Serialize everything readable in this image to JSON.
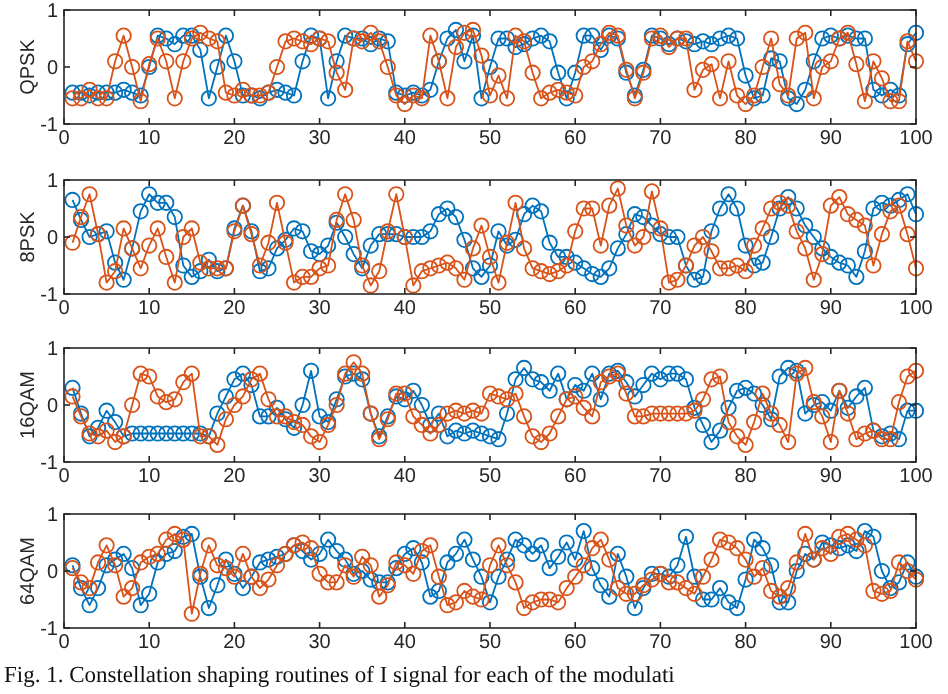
{
  "chart_data": [
    {
      "type": "line",
      "ylabel": "QPSK",
      "marker": "circle",
      "xlim": [
        0,
        100
      ],
      "xticks": [
        0,
        10,
        20,
        30,
        40,
        50,
        60,
        70,
        80,
        90,
        100
      ],
      "ylim": [
        -1,
        1
      ],
      "yticks": [
        -1,
        0,
        1
      ],
      "x": [
        1,
        2,
        3,
        4,
        5,
        6,
        7,
        8,
        9,
        10,
        11,
        12,
        13,
        14,
        15,
        16,
        17,
        18,
        19,
        20,
        21,
        22,
        23,
        24,
        25,
        26,
        27,
        28,
        29,
        30,
        31,
        32,
        33,
        34,
        35,
        36,
        37,
        38,
        39,
        40,
        41,
        42,
        43,
        44,
        45,
        46,
        47,
        48,
        49,
        50,
        51,
        52,
        53,
        54,
        55,
        56,
        57,
        58,
        59,
        60,
        61,
        62,
        63,
        64,
        65,
        66,
        67,
        68,
        69,
        70,
        71,
        72,
        73,
        74,
        75,
        76,
        77,
        78,
        79,
        80,
        81,
        82,
        83,
        84,
        85,
        86,
        87,
        88,
        89,
        90,
        91,
        92,
        93,
        94,
        95,
        96,
        97,
        98,
        99,
        100
      ],
      "series": [
        {
          "color": "#0072bd",
          "values": [
            -0.45,
            -0.45,
            -0.5,
            -0.45,
            -0.45,
            -0.45,
            -0.4,
            -0.45,
            -0.5,
            0,
            0.55,
            0.5,
            0.4,
            0.55,
            0.55,
            0.3,
            -0.55,
            0,
            0.55,
            0.1,
            -0.5,
            -0.5,
            -0.55,
            -0.45,
            -0.4,
            -0.45,
            -0.5,
            0.1,
            0.55,
            0.5,
            -0.55,
            0.1,
            0.55,
            0.5,
            0.5,
            0.4,
            0.5,
            0.45,
            -0.45,
            -0.5,
            -0.45,
            -0.5,
            -0.4,
            0.1,
            0.5,
            0.65,
            0.1,
            0.55,
            -0.55,
            0,
            0.5,
            0.5,
            0.35,
            0.4,
            0.5,
            0.55,
            0.45,
            -0.1,
            -0.55,
            -0.1,
            0.55,
            0.55,
            0.3,
            0.55,
            0.5,
            -0.1,
            -0.5,
            -0.05,
            0.55,
            0.5,
            0.4,
            0.5,
            0.45,
            0.4,
            0.45,
            0.4,
            0.5,
            0.55,
            0.5,
            -0.15,
            -0.55,
            -0.5,
            0.15,
            0.1,
            -0.55,
            -0.65,
            -0.4,
            0.1,
            0.5,
            0.55,
            0.5,
            0.55,
            0.5,
            0.5,
            -0.4,
            -0.5,
            -0.4,
            -0.5,
            0.4,
            0.6
          ]
        },
        {
          "color": "#d95319",
          "values": [
            -0.55,
            -0.55,
            -0.4,
            -0.55,
            -0.55,
            0.1,
            0.55,
            0,
            -0.6,
            0.05,
            0.5,
            0.1,
            -0.55,
            0.1,
            0.5,
            0.6,
            0.5,
            0.45,
            -0.45,
            -0.5,
            -0.4,
            -0.5,
            -0.5,
            -0.45,
            0,
            0.45,
            0.5,
            0.45,
            0.4,
            0.5,
            0.45,
            -0.1,
            -0.4,
            0.5,
            0.45,
            0.6,
            0.45,
            0,
            -0.5,
            -0.65,
            -0.5,
            -0.55,
            0.55,
            0.1,
            -0.55,
            0.35,
            0.6,
            0.65,
            0.2,
            -0.5,
            -0.15,
            -0.55,
            0.55,
            0.45,
            -0.1,
            -0.55,
            -0.45,
            -0.4,
            -0.45,
            -0.5,
            0,
            0.1,
            0.4,
            0.6,
            0.55,
            -0.05,
            -0.55,
            -0.1,
            0.5,
            0.55,
            0.35,
            0.5,
            0.5,
            -0.4,
            -0.05,
            0.05,
            -0.55,
            0.1,
            -0.5,
            -0.65,
            -0.5,
            0,
            0.5,
            -0.3,
            -0.5,
            0.5,
            0.6,
            -0.55,
            0,
            0.1,
            0.5,
            0.6,
            0.05,
            -0.6,
            0.1,
            -0.2,
            -0.6,
            -0.6,
            0.45,
            0.1
          ]
        }
      ]
    },
    {
      "type": "line",
      "ylabel": "8PSK",
      "marker": "circle",
      "xlim": [
        0,
        100
      ],
      "xticks": [
        0,
        10,
        20,
        30,
        40,
        50,
        60,
        70,
        80,
        90,
        100
      ],
      "ylim": [
        -1,
        1
      ],
      "yticks": [
        -1,
        0,
        1
      ],
      "x": [
        1,
        2,
        3,
        4,
        5,
        6,
        7,
        8,
        9,
        10,
        11,
        12,
        13,
        14,
        15,
        16,
        17,
        18,
        19,
        20,
        21,
        22,
        23,
        24,
        25,
        26,
        27,
        28,
        29,
        30,
        31,
        32,
        33,
        34,
        35,
        36,
        37,
        38,
        39,
        40,
        41,
        42,
        43,
        44,
        45,
        46,
        47,
        48,
        49,
        50,
        51,
        52,
        53,
        54,
        55,
        56,
        57,
        58,
        59,
        60,
        61,
        62,
        63,
        64,
        65,
        66,
        67,
        68,
        69,
        70,
        71,
        72,
        73,
        74,
        75,
        76,
        77,
        78,
        79,
        80,
        81,
        82,
        83,
        84,
        85,
        86,
        87,
        88,
        89,
        90,
        91,
        92,
        93,
        94,
        95,
        96,
        97,
        98,
        99,
        100
      ],
      "series": [
        {
          "color": "#0072bd",
          "values": [
            0.65,
            0.3,
            0,
            0.05,
            0.1,
            -0.45,
            -0.75,
            -0.2,
            0.45,
            0.75,
            0.6,
            0.6,
            0.35,
            -0.5,
            -0.7,
            -0.6,
            -0.4,
            -0.6,
            -0.55,
            0.15,
            0.55,
            0.1,
            -0.6,
            -0.55,
            -0.2,
            -0.05,
            0.15,
            0.1,
            -0.25,
            -0.3,
            -0.15,
            0.25,
            0,
            -0.3,
            -0.55,
            -0.15,
            0.05,
            0.05,
            0.05,
            0,
            0,
            0,
            0.1,
            0.4,
            0.5,
            0.35,
            -0.05,
            -0.55,
            -0.7,
            -0.5,
            0.1,
            -0.15,
            -0.05,
            0.4,
            0.55,
            0.45,
            -0.1,
            -0.35,
            -0.35,
            -0.45,
            -0.55,
            -0.65,
            -0.7,
            -0.55,
            -0.2,
            0.05,
            0.4,
            0.35,
            0.2,
            0.05,
            0,
            0,
            -0.5,
            -0.75,
            -0.7,
            0.1,
            0.5,
            0.75,
            0.5,
            -0.15,
            -0.5,
            -0.45,
            0,
            0.5,
            0.7,
            0.5,
            0.2,
            0,
            -0.2,
            -0.35,
            -0.45,
            -0.5,
            -0.7,
            -0.25,
            0.5,
            0.6,
            0.55,
            0.65,
            0.75,
            0.4
          ]
        },
        {
          "color": "#d95319",
          "values": [
            -0.1,
            0.35,
            0.75,
            0.05,
            -0.8,
            -0.6,
            0.15,
            -0.2,
            -0.55,
            -0.15,
            0.15,
            -0.35,
            -0.8,
            0,
            0.15,
            -0.45,
            -0.55,
            -0.55,
            -0.55,
            0.1,
            0.55,
            0.05,
            -0.5,
            -0.1,
            0.6,
            -0.1,
            -0.8,
            -0.7,
            -0.7,
            -0.55,
            -0.5,
            0.3,
            0.75,
            0.3,
            -0.5,
            -0.85,
            -0.6,
            0.1,
            0.75,
            0,
            -0.85,
            -0.6,
            -0.55,
            -0.5,
            -0.45,
            -0.55,
            -0.75,
            -0.2,
            0.2,
            -0.35,
            -0.8,
            -0.1,
            0.6,
            -0.2,
            -0.55,
            -0.6,
            -0.65,
            -0.6,
            -0.5,
            0.1,
            0.5,
            0.5,
            -0.15,
            0.55,
            0.85,
            0.2,
            -0.15,
            0,
            0.8,
            0.15,
            -0.8,
            -0.75,
            -0.5,
            -0.15,
            0,
            -0.25,
            -0.55,
            -0.55,
            -0.5,
            -0.6,
            -0.15,
            0.15,
            0.5,
            0.6,
            0.55,
            0.1,
            -0.2,
            -0.75,
            -0.3,
            0.55,
            0.7,
            0.4,
            0.3,
            0.2,
            -0.5,
            0.05,
            0.45,
            0.55,
            0.05,
            -0.55
          ]
        }
      ]
    },
    {
      "type": "line",
      "ylabel": "16QAM",
      "marker": "circle",
      "xlim": [
        0,
        100
      ],
      "xticks": [
        0,
        10,
        20,
        30,
        40,
        50,
        60,
        70,
        80,
        90,
        100
      ],
      "ylim": [
        -1,
        1
      ],
      "yticks": [
        -1,
        0,
        1
      ],
      "x": [
        1,
        2,
        3,
        4,
        5,
        6,
        7,
        8,
        9,
        10,
        11,
        12,
        13,
        14,
        15,
        16,
        17,
        18,
        19,
        20,
        21,
        22,
        23,
        24,
        25,
        26,
        27,
        28,
        29,
        30,
        31,
        32,
        33,
        34,
        35,
        36,
        37,
        38,
        39,
        40,
        41,
        42,
        43,
        44,
        45,
        46,
        47,
        48,
        49,
        50,
        51,
        52,
        53,
        54,
        55,
        56,
        57,
        58,
        59,
        60,
        61,
        62,
        63,
        64,
        65,
        66,
        67,
        68,
        69,
        70,
        71,
        72,
        73,
        74,
        75,
        76,
        77,
        78,
        79,
        80,
        81,
        82,
        83,
        84,
        85,
        86,
        87,
        88,
        89,
        90,
        91,
        92,
        93,
        94,
        95,
        96,
        97,
        98,
        99,
        100
      ],
      "series": [
        {
          "color": "#0072bd",
          "values": [
            0.3,
            -0.15,
            -0.55,
            -0.4,
            -0.1,
            -0.3,
            -0.55,
            -0.5,
            -0.5,
            -0.5,
            -0.5,
            -0.5,
            -0.5,
            -0.5,
            -0.5,
            -0.5,
            -0.55,
            -0.15,
            0.15,
            0.45,
            0.55,
            0.35,
            -0.2,
            -0.2,
            -0.05,
            -0.25,
            -0.4,
            0,
            0.6,
            -0.2,
            -0.3,
            0.1,
            0.5,
            0.55,
            0.45,
            -0.15,
            -0.55,
            -0.2,
            0.15,
            0.1,
            0.25,
            0,
            -0.35,
            -0.15,
            -0.55,
            -0.45,
            -0.5,
            -0.45,
            -0.5,
            -0.55,
            -0.6,
            -0.15,
            0.45,
            0.65,
            0.45,
            0.4,
            0.25,
            0.55,
            0.1,
            0.35,
            0.25,
            0.55,
            0.1,
            0.55,
            0.6,
            0.4,
            0.15,
            0.35,
            0.55,
            0.45,
            0.55,
            0.55,
            0.45,
            -0.05,
            -0.35,
            -0.65,
            -0.45,
            -0.05,
            0.25,
            0.3,
            0.2,
            0,
            -0.25,
            0.5,
            0.65,
            0.6,
            -0.15,
            0,
            0.05,
            -0.1,
            0.25,
            -0.05,
            0.15,
            0.3,
            -0.45,
            -0.55,
            -0.5,
            -0.6,
            -0.1,
            -0.1
          ]
        },
        {
          "color": "#d95319",
          "values": [
            0.15,
            -0.2,
            -0.5,
            -0.55,
            -0.45,
            -0.65,
            -0.55,
            0,
            0.55,
            0.5,
            0.15,
            0.05,
            0.1,
            0.4,
            0.55,
            -0.55,
            -0.55,
            -0.7,
            -0.25,
            0,
            0.15,
            0.45,
            0.55,
            0.1,
            -0.2,
            -0.2,
            -0.3,
            -0.35,
            -0.55,
            -0.65,
            -0.35,
            0,
            0.55,
            0.75,
            0.55,
            -0.15,
            -0.6,
            -0.25,
            0.2,
            0.2,
            -0.2,
            -0.35,
            -0.5,
            -0.35,
            -0.15,
            -0.1,
            -0.15,
            -0.1,
            -0.15,
            0.2,
            0.15,
            0.1,
            0.2,
            -0.2,
            -0.55,
            -0.65,
            -0.5,
            -0.2,
            0.1,
            0.15,
            -0.05,
            -0.2,
            0.4,
            0.5,
            0.55,
            0.2,
            -0.2,
            -0.2,
            -0.15,
            -0.15,
            -0.15,
            -0.15,
            -0.15,
            -0.1,
            0.1,
            0.45,
            0.5,
            -0.3,
            -0.55,
            -0.7,
            -0.3,
            0.2,
            -0.15,
            -0.35,
            -0.65,
            0.55,
            0.65,
            0.05,
            -0.2,
            -0.65,
            0.25,
            -0.15,
            -0.6,
            -0.5,
            -0.45,
            -0.6,
            -0.6,
            0.05,
            0.5,
            0.6
          ]
        }
      ]
    },
    {
      "type": "line",
      "ylabel": "64QAM",
      "marker": "circle",
      "xlim": [
        0,
        100
      ],
      "xticks": [
        0,
        10,
        20,
        30,
        40,
        50,
        60,
        70,
        80,
        90,
        100
      ],
      "ylim": [
        -1,
        1
      ],
      "yticks": [
        -1,
        0,
        1
      ],
      "annotations": [
        "Fig. 1. Constellation shaping routines of I signal for each of the modulati"
      ],
      "x": [
        1,
        2,
        3,
        4,
        5,
        6,
        7,
        8,
        9,
        10,
        11,
        12,
        13,
        14,
        15,
        16,
        17,
        18,
        19,
        20,
        21,
        22,
        23,
        24,
        25,
        26,
        27,
        28,
        29,
        30,
        31,
        32,
        33,
        34,
        35,
        36,
        37,
        38,
        39,
        40,
        41,
        42,
        43,
        44,
        45,
        46,
        47,
        48,
        49,
        50,
        51,
        52,
        53,
        54,
        55,
        56,
        57,
        58,
        59,
        60,
        61,
        62,
        63,
        64,
        65,
        66,
        67,
        68,
        69,
        70,
        71,
        72,
        73,
        74,
        75,
        76,
        77,
        78,
        79,
        80,
        81,
        82,
        83,
        84,
        85,
        86,
        87,
        88,
        89,
        90,
        91,
        92,
        93,
        94,
        95,
        96,
        97,
        98,
        99,
        100
      ],
      "series": [
        {
          "color": "#0072bd",
          "values": [
            0.1,
            -0.3,
            -0.6,
            -0.3,
            0.1,
            0.2,
            0.3,
            0.05,
            -0.6,
            -0.4,
            0.15,
            0.3,
            0.35,
            0.6,
            0.65,
            -0.1,
            -0.65,
            -0.25,
            0.2,
            -0.05,
            -0.3,
            -0.1,
            0.15,
            0.2,
            0.25,
            0.3,
            0.45,
            0.35,
            0.2,
            0.3,
            0.55,
            0.35,
            0.2,
            -0.05,
            0,
            -0.15,
            -0.2,
            -0.2,
            0.05,
            0.3,
            0.4,
            0.15,
            -0.45,
            -0.35,
            0.15,
            0.3,
            0.55,
            0.2,
            -0.1,
            -0.55,
            -0.1,
            0.2,
            0.55,
            0.45,
            0.3,
            0.45,
            0.05,
            0.25,
            0.5,
            0.2,
            0.7,
            0.05,
            -0.25,
            -0.45,
            0.3,
            -0.1,
            -0.65,
            -0.3,
            -0.05,
            -0.05,
            -0.1,
            0.1,
            0.6,
            -0.1,
            -0.5,
            -0.5,
            -0.3,
            -0.55,
            -0.65,
            -0.15,
            0.55,
            0.4,
            0.1,
            -0.55,
            -0.55,
            0,
            0.3,
            0.2,
            0.5,
            0.45,
            0.4,
            0.45,
            0.35,
            0.7,
            0.6,
            0,
            -0.3,
            -0.2,
            0.15,
            -0.1
          ]
        },
        {
          "color": "#d95319",
          "values": [
            0.05,
            -0.2,
            -0.3,
            0.15,
            0.45,
            0.1,
            -0.45,
            -0.3,
            0.15,
            0.25,
            0.3,
            0.55,
            0.65,
            0.55,
            -0.75,
            -0.05,
            0.45,
            0.1,
            0.05,
            -0.1,
            0.3,
            -0.1,
            -0.3,
            -0.15,
            0.1,
            0.3,
            0.45,
            0.5,
            0.4,
            -0.05,
            -0.2,
            -0.2,
            0.1,
            -0.1,
            0.25,
            0.1,
            -0.45,
            -0.25,
            0.15,
            0.1,
            -0.05,
            0.35,
            0.45,
            -0.1,
            -0.6,
            -0.55,
            -0.35,
            -0.45,
            -0.5,
            0.1,
            0.45,
            0.1,
            -0.2,
            -0.65,
            -0.55,
            -0.5,
            -0.5,
            -0.55,
            -0.3,
            -0.1,
            0.1,
            0.4,
            0.55,
            0.2,
            -0.3,
            -0.4,
            -0.4,
            -0.25,
            -0.15,
            -0.05,
            -0.2,
            -0.2,
            -0.3,
            -0.4,
            -0.1,
            0.2,
            0.55,
            0.5,
            0.4,
            0.2,
            -0.1,
            0.05,
            -0.35,
            -0.45,
            -0.3,
            0.15,
            0.65,
            0.2,
            0.4,
            0.3,
            0.6,
            0.65,
            0.55,
            0.45,
            -0.35,
            -0.4,
            -0.35,
            0.15,
            0,
            -0.15
          ]
        }
      ]
    }
  ]
}
